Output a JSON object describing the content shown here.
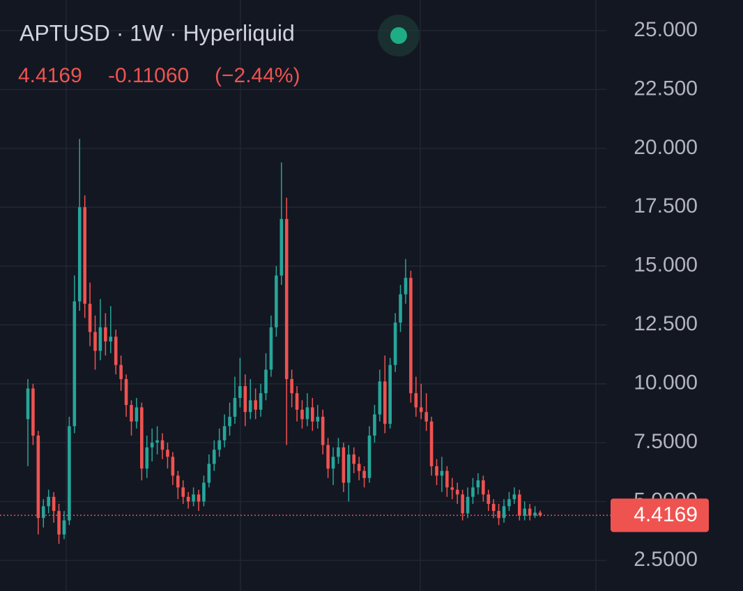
{
  "chart_data": {
    "type": "candlestick",
    "title": "APTUSD · 1W · Hyperliquid",
    "last_price_color": "#ef5350",
    "change": {
      "value": -0.1106,
      "label": "-0.11060"
    },
    "change_percent": {
      "value": -2.44,
      "label": "(−2.44%)"
    },
    "up_color": "#26a69a",
    "down_color": "#ef5350",
    "grid": true,
    "ylim": [
      1.2,
      26.3
    ],
    "yticks": [
      {
        "value": 2.5,
        "label": "2.5000"
      },
      {
        "value": 5,
        "label": "5.0000"
      },
      {
        "value": 7.5,
        "label": "7.5000"
      },
      {
        "value": 10,
        "label": "10.000"
      },
      {
        "value": 12.5,
        "label": "12.500"
      },
      {
        "value": 15,
        "label": "15.000"
      },
      {
        "value": 17.5,
        "label": "17.500"
      },
      {
        "value": 20,
        "label": "20.000"
      },
      {
        "value": 22.5,
        "label": "22.500"
      },
      {
        "value": 25,
        "label": "25.000"
      }
    ],
    "open": [
      8.5,
      9.8,
      7.8,
      4.3,
      4.8,
      5.2,
      4.6,
      3.6,
      4.2,
      8.2,
      13.5,
      17.5,
      13.4,
      12.2,
      11.4,
      12.4,
      11.8,
      12.0,
      10.8,
      10.2,
      9.1,
      8.4,
      9.0,
      6.4,
      7.3,
      7.5,
      7.6,
      7.2,
      6.9,
      6.1,
      5.6,
      5.2,
      5.0,
      5.3,
      5.0,
      5.8,
      6.6,
      7.2,
      7.6,
      8.2,
      8.6,
      9.4,
      9.9,
      8.8,
      9.3,
      8.9,
      9.6,
      10.6,
      12.4,
      14.6,
      17.0,
      10.2,
      9.6,
      8.9,
      8.5,
      9.0,
      8.4,
      8.6,
      7.4,
      6.4,
      6.9,
      7.3,
      5.8,
      7.0,
      6.6,
      6.3,
      6.0,
      7.8,
      8.7,
      10.1,
      8.3,
      10.8,
      12.6,
      13.8,
      14.5,
      9.6,
      9.0,
      8.8,
      8.4,
      6.5,
      6.1,
      6.3,
      5.6,
      5.5,
      5.3,
      4.5,
      5.2,
      5.6,
      5.9,
      5.3,
      4.9,
      4.6,
      4.3,
      4.8,
      5.1,
      5.3,
      4.4,
      4.7,
      4.4,
      4.5275
    ],
    "high": [
      10.2,
      10.0,
      8.0,
      5.1,
      5.5,
      5.4,
      4.9,
      4.6,
      8.6,
      14.6,
      20.4,
      18.0,
      14.3,
      12.9,
      13.6,
      13.0,
      13.3,
      12.3,
      11.2,
      10.4,
      9.3,
      9.4,
      9.2,
      7.8,
      8.1,
      8.2,
      7.9,
      7.5,
      7.1,
      6.3,
      5.9,
      5.4,
      5.6,
      5.5,
      6.1,
      7.0,
      7.6,
      8.1,
      8.7,
      9.2,
      10.3,
      11.1,
      10.4,
      10.2,
      9.8,
      10.0,
      11.3,
      12.9,
      15.0,
      19.4,
      17.9,
      10.6,
      9.9,
      9.3,
      9.6,
      9.4,
      9.1,
      8.9,
      7.7,
      7.3,
      7.7,
      7.5,
      7.4,
      7.3,
      6.9,
      6.5,
      8.2,
      9.1,
      10.6,
      11.2,
      11.1,
      13.0,
      14.2,
      15.3,
      14.8,
      10.3,
      10.0,
      9.6,
      8.6,
      6.8,
      6.9,
      6.5,
      6.0,
      5.8,
      5.5,
      5.6,
      6.0,
      6.2,
      6.1,
      5.5,
      5.1,
      4.9,
      5.1,
      5.4,
      5.6,
      5.5,
      5.0,
      4.9,
      4.8,
      4.62
    ],
    "low": [
      6.5,
      7.4,
      3.6,
      3.9,
      4.5,
      4.1,
      3.2,
      3.4,
      4.0,
      7.9,
      13.1,
      12.8,
      11.6,
      10.6,
      11.0,
      11.2,
      11.3,
      10.4,
      9.7,
      8.6,
      7.8,
      8.1,
      5.9,
      6.0,
      6.7,
      7.0,
      6.8,
      6.4,
      5.7,
      5.1,
      4.9,
      4.7,
      4.8,
      4.6,
      4.8,
      5.6,
      6.3,
      6.9,
      7.3,
      7.8,
      8.3,
      9.0,
      8.2,
      8.5,
      8.5,
      8.6,
      9.3,
      10.3,
      12.0,
      14.2,
      7.4,
      9.0,
      8.4,
      8.1,
      8.2,
      8.0,
      8.1,
      7.0,
      6.0,
      5.7,
      6.6,
      5.4,
      5.0,
      6.2,
      5.9,
      5.6,
      5.8,
      7.5,
      8.4,
      7.9,
      8.1,
      10.5,
      12.2,
      13.4,
      9.2,
      8.6,
      8.5,
      8.0,
      6.1,
      5.7,
      5.4,
      5.2,
      5.1,
      4.9,
      4.2,
      4.3,
      4.9,
      5.3,
      5.0,
      4.6,
      4.3,
      4.0,
      4.1,
      4.6,
      4.9,
      4.2,
      4.2,
      4.2,
      4.3,
      4.35
    ],
    "close": [
      9.8,
      7.8,
      4.3,
      4.8,
      5.2,
      4.6,
      3.6,
      4.2,
      8.2,
      13.5,
      17.5,
      13.4,
      12.2,
      11.4,
      12.4,
      11.8,
      12.0,
      10.8,
      10.2,
      9.1,
      8.4,
      9.0,
      6.4,
      7.3,
      7.5,
      7.6,
      7.2,
      6.9,
      6.1,
      5.6,
      5.2,
      5.0,
      5.3,
      5.0,
      5.8,
      6.6,
      7.2,
      7.6,
      8.2,
      8.6,
      9.4,
      9.9,
      8.8,
      9.3,
      8.9,
      9.6,
      10.6,
      12.4,
      14.6,
      17.0,
      10.2,
      9.6,
      8.9,
      8.5,
      9.0,
      8.4,
      8.6,
      7.4,
      6.4,
      6.9,
      7.3,
      5.8,
      7.0,
      6.6,
      6.3,
      6.0,
      7.8,
      8.7,
      10.1,
      8.3,
      10.8,
      12.6,
      13.8,
      14.5,
      9.6,
      9.0,
      8.8,
      8.4,
      6.5,
      6.1,
      6.3,
      5.6,
      5.5,
      5.3,
      4.5,
      5.2,
      5.6,
      5.9,
      5.3,
      4.9,
      4.6,
      4.3,
      4.8,
      5.1,
      5.3,
      4.4,
      4.7,
      4.4,
      4.5275,
      4.4169
    ]
  }
}
